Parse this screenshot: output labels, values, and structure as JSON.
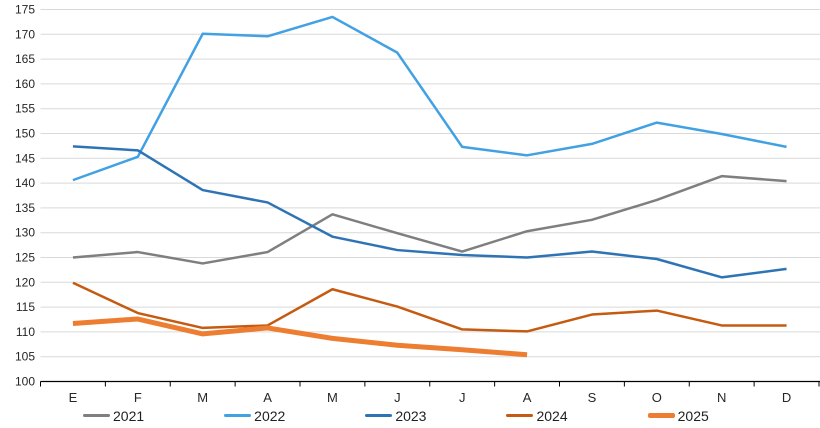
{
  "chart_data": {
    "type": "line",
    "title": "",
    "xlabel": "",
    "ylabel": "",
    "x_categories": [
      "E",
      "F",
      "M",
      "A",
      "M",
      "J",
      "J",
      "A",
      "S",
      "O",
      "N",
      "D"
    ],
    "ylim": [
      100,
      175
    ],
    "yticks": [
      100,
      105,
      110,
      115,
      120,
      125,
      130,
      135,
      140,
      145,
      150,
      155,
      160,
      165,
      170,
      175
    ],
    "grid": true,
    "gridline_color": "#d9d9d9",
    "axis_color": "#000000",
    "tick_label_color": "#262626",
    "legend_position": "bottom",
    "series": [
      {
        "name": "2021",
        "color": "#7f7f7f",
        "width": 2.5,
        "values": [
          125.0,
          126.1,
          123.8,
          126.1,
          133.7,
          129.9,
          126.2,
          130.3,
          132.6,
          136.6,
          141.4,
          140.4
        ]
      },
      {
        "name": "2022",
        "color": "#41a1e3",
        "width": 2.5,
        "values": [
          140.6,
          145.3,
          170.1,
          169.6,
          173.5,
          166.3,
          147.3,
          145.6,
          147.9,
          152.2,
          149.9,
          147.3
        ]
      },
      {
        "name": "2023",
        "color": "#2e74b5",
        "width": 2.5,
        "values": [
          147.4,
          146.6,
          138.6,
          136.1,
          129.2,
          126.5,
          125.5,
          125.0,
          126.2,
          124.7,
          121.0,
          122.7
        ]
      },
      {
        "name": "2024",
        "color": "#c55a11",
        "width": 2.5,
        "values": [
          119.9,
          113.8,
          110.8,
          111.3,
          118.6,
          115.1,
          110.5,
          110.1,
          113.5,
          114.3,
          111.3,
          111.3
        ]
      },
      {
        "name": "2025",
        "color": "#ed7d31",
        "width": 5,
        "values": [
          111.7,
          112.6,
          109.6,
          110.8,
          108.7,
          107.3,
          106.4,
          105.4
        ]
      }
    ]
  }
}
